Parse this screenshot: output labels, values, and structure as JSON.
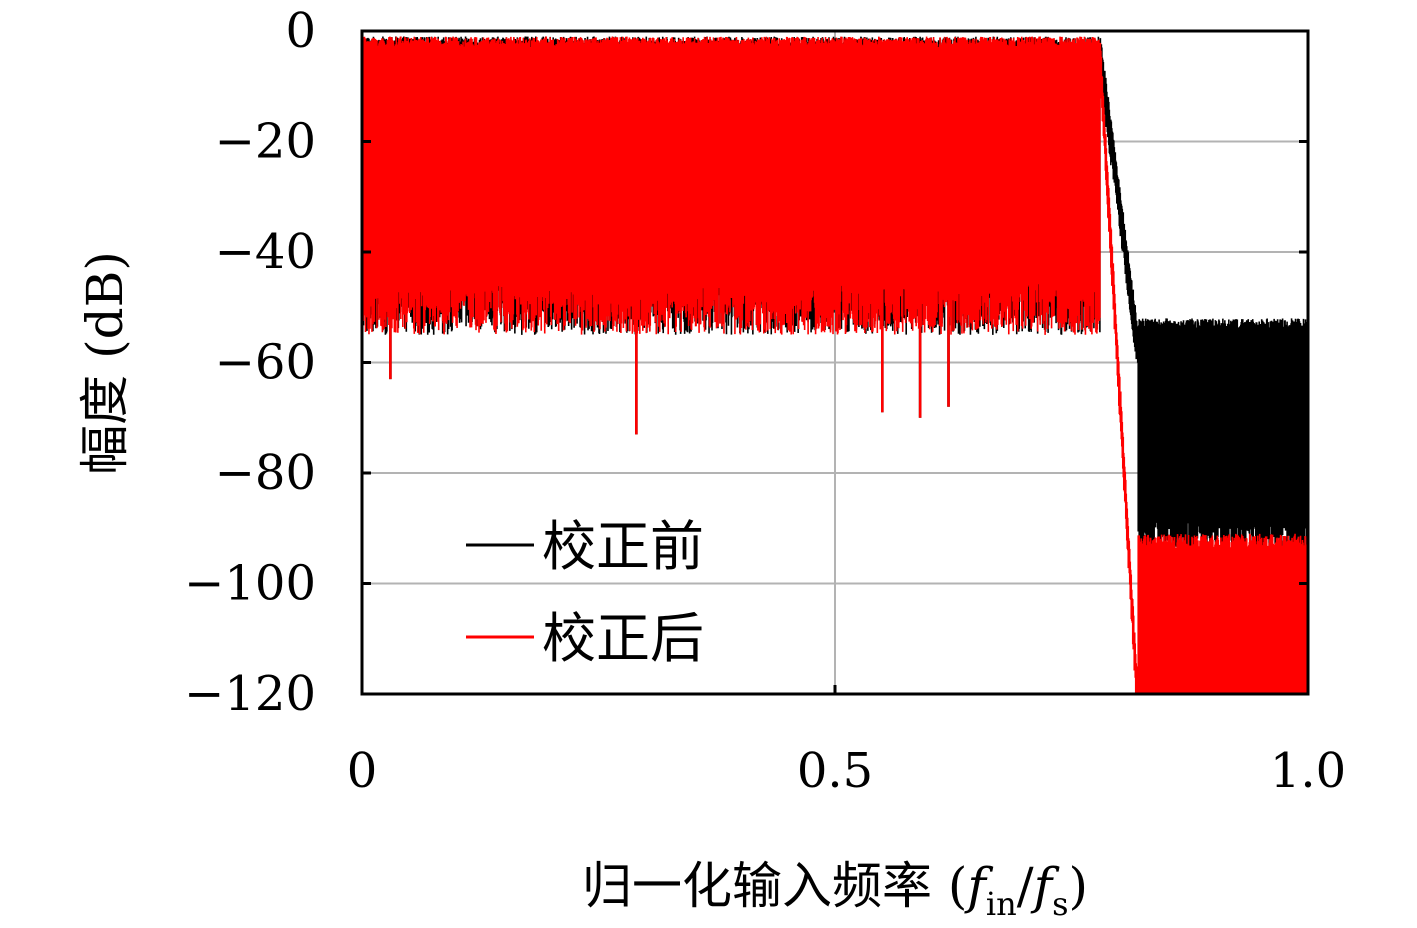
{
  "chart_data": {
    "type": "line",
    "xlabel": "归一化输入频率 (fin/fs)",
    "xlabel_parts": {
      "prefix": "归一化输入频率 (",
      "f1": "f",
      "sub1": "in",
      "slash": "/",
      "f2": "f",
      "sub2": "s",
      "suffix": ")"
    },
    "ylabel": "幅度 (dB)",
    "xlim": [
      0,
      1.0
    ],
    "ylim": [
      -120,
      0
    ],
    "x_ticks": [
      0,
      0.5,
      1.0
    ],
    "x_tick_labels": [
      "0",
      "0.5",
      "1.0"
    ],
    "y_ticks": [
      0,
      -20,
      -40,
      -60,
      -80,
      -100,
      -120
    ],
    "y_tick_labels": [
      "0",
      "−20",
      "−40",
      "−60",
      "−80",
      "−100",
      "−120"
    ],
    "grid": true,
    "legend_position": "bottom-left",
    "series": [
      {
        "name": "校正前",
        "color": "#000000",
        "passband": {
          "x_range": [
            0,
            0.78
          ],
          "top_db": [
            -3,
            -1
          ],
          "floor_db": [
            -55,
            -45
          ]
        },
        "transition": {
          "x_range": [
            0.78,
            0.82
          ],
          "db": [
            -2,
            -55
          ]
        },
        "stopband": {
          "x_range": [
            0.82,
            1.0
          ],
          "top_db": [
            -54,
            -52
          ],
          "floor_db": [
            -95,
            -88
          ]
        }
      },
      {
        "name": "校正后",
        "color": "#ff0000",
        "passband": {
          "x_range": [
            0,
            0.78
          ],
          "top_db": [
            -3,
            -1
          ],
          "floor_db": [
            -55,
            -45
          ]
        },
        "transition": {
          "x_range": [
            0.78,
            0.82
          ],
          "db": [
            -2,
            -120
          ]
        },
        "stopband": {
          "x_range": [
            0.82,
            1.0
          ],
          "top_db": [
            -94,
            -91
          ],
          "floor_db": [
            -120,
            -120
          ]
        }
      }
    ],
    "notable_dips_db": [
      {
        "x": 0.03,
        "y": -63
      },
      {
        "x": 0.29,
        "y": -73
      },
      {
        "x": 0.55,
        "y": -69
      },
      {
        "x": 0.59,
        "y": -70
      },
      {
        "x": 0.62,
        "y": -68
      }
    ]
  }
}
